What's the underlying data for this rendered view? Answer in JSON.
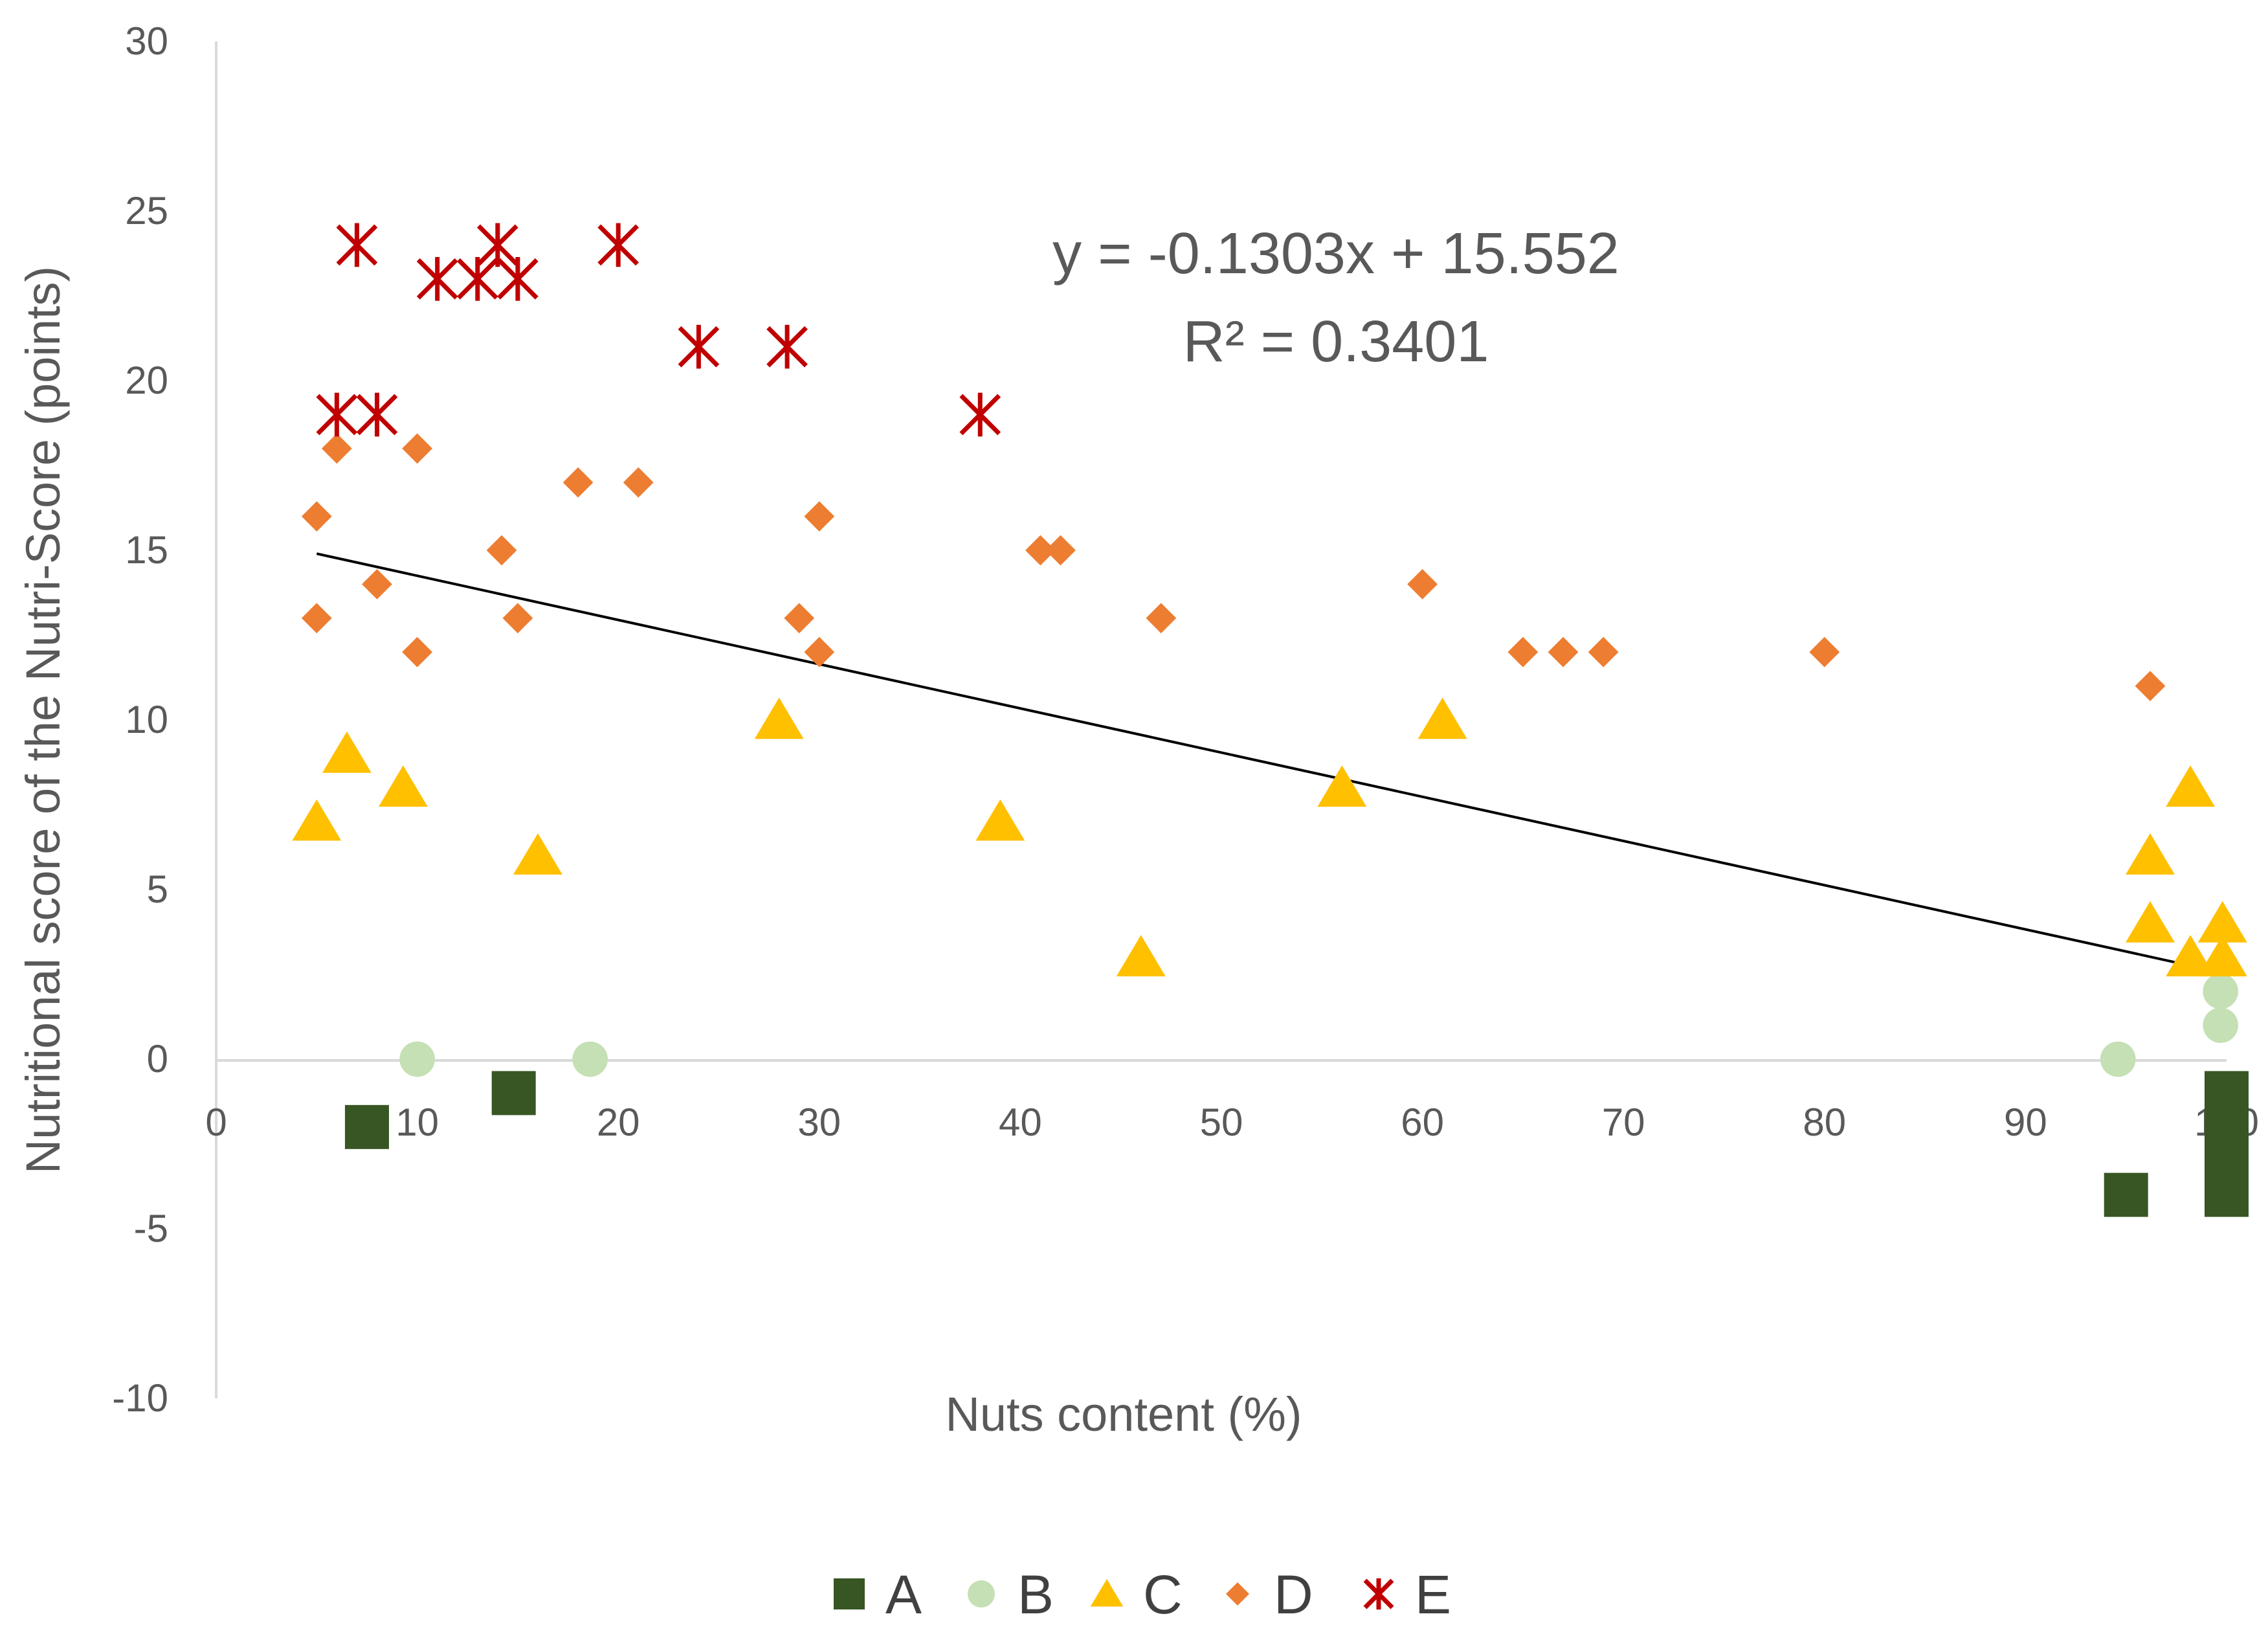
{
  "chart_data": {
    "type": "scatter",
    "title": "",
    "xlabel": "Nuts content (%)",
    "ylabel": "Nutritional score of the  Nutri-Score (points)",
    "xlim": [
      0,
      100
    ],
    "ylim": [
      -10,
      30
    ],
    "x_ticks": [
      0,
      10,
      20,
      30,
      40,
      50,
      60,
      70,
      80,
      90,
      100
    ],
    "y_ticks": [
      -10,
      -5,
      0,
      5,
      10,
      15,
      20,
      25,
      30
    ],
    "x_tick_labels": [
      "0",
      "10",
      "20",
      "30",
      "40",
      "50",
      "60",
      "70",
      "80",
      "90",
      "100"
    ],
    "y_tick_labels": [
      "-10",
      "-5",
      "0",
      "5",
      "10",
      "15",
      "20",
      "25",
      "30"
    ],
    "grid": false,
    "legend_position": "bottom",
    "series": [
      {
        "name": "A",
        "marker": "square",
        "color": "#375623",
        "points": [
          [
            7.5,
            -2
          ],
          [
            14.8,
            -1
          ],
          [
            95,
            -4
          ],
          [
            100,
            -1
          ],
          [
            100,
            -2
          ],
          [
            100,
            -3
          ],
          [
            100,
            -4
          ]
        ]
      },
      {
        "name": "B",
        "marker": "circle",
        "color": "#c5e0b4",
        "points": [
          [
            10,
            0
          ],
          [
            18.6,
            0
          ],
          [
            94.6,
            0
          ],
          [
            99.7,
            2
          ],
          [
            99.7,
            1
          ]
        ]
      },
      {
        "name": "C",
        "marker": "triangle",
        "color": "#ffc000",
        "points": [
          [
            5,
            7
          ],
          [
            6.5,
            9
          ],
          [
            9.3,
            8
          ],
          [
            16,
            6
          ],
          [
            28,
            10
          ],
          [
            39,
            7
          ],
          [
            46,
            3
          ],
          [
            56,
            8
          ],
          [
            61,
            10
          ],
          [
            96.2,
            6
          ],
          [
            96.2,
            4
          ],
          [
            98.2,
            8
          ],
          [
            98.2,
            3
          ],
          [
            99.8,
            4
          ],
          [
            99.8,
            3
          ]
        ]
      },
      {
        "name": "D",
        "marker": "diamond",
        "color": "#ed7d31",
        "points": [
          [
            5,
            16
          ],
          [
            5,
            13
          ],
          [
            6,
            18
          ],
          [
            8,
            14
          ],
          [
            10,
            18
          ],
          [
            10,
            12
          ],
          [
            14.2,
            15
          ],
          [
            15,
            13
          ],
          [
            18,
            17
          ],
          [
            21,
            17
          ],
          [
            29,
            13
          ],
          [
            30,
            16
          ],
          [
            30,
            12
          ],
          [
            41,
            15
          ],
          [
            42,
            15
          ],
          [
            47,
            13
          ],
          [
            60,
            14
          ],
          [
            65,
            12
          ],
          [
            67,
            12
          ],
          [
            69,
            12
          ],
          [
            80,
            12
          ],
          [
            96.2,
            11
          ]
        ]
      },
      {
        "name": "E",
        "marker": "star",
        "color": "#c00000",
        "points": [
          [
            7,
            24
          ],
          [
            6,
            19
          ],
          [
            8,
            19
          ],
          [
            11,
            23
          ],
          [
            13,
            23
          ],
          [
            14,
            24
          ],
          [
            15,
            23
          ],
          [
            20,
            24
          ],
          [
            24,
            21
          ],
          [
            28.4,
            21
          ],
          [
            38,
            19
          ]
        ]
      }
    ],
    "trendline": {
      "slope": -0.1303,
      "intercept": 15.552,
      "x_range": [
        5,
        100
      ],
      "color": "#000000"
    },
    "annotations": [
      "y = -0.1303x + 15.552",
      "R² = 0.3401"
    ]
  }
}
